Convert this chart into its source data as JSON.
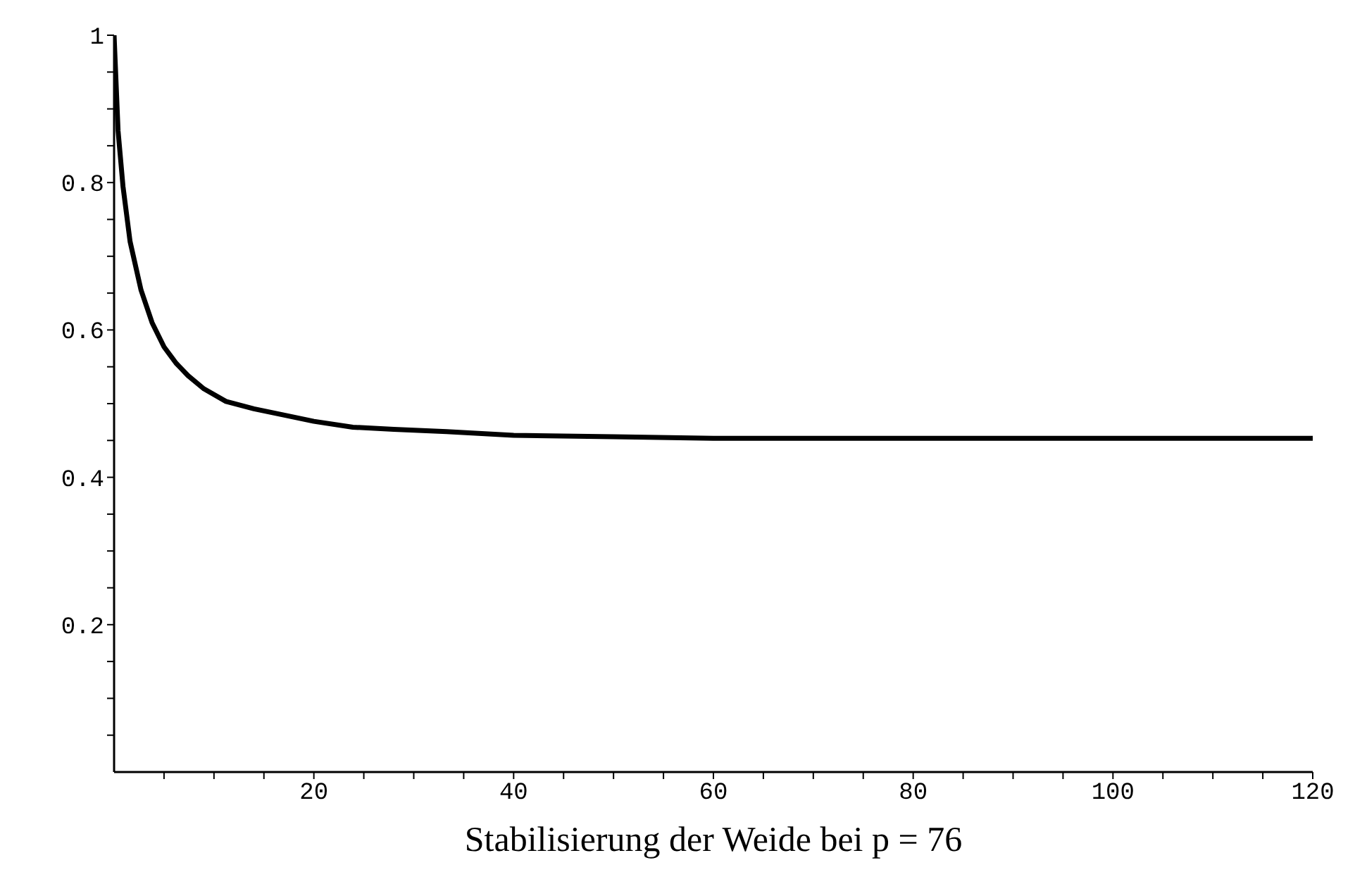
{
  "chart_data": {
    "type": "line",
    "xlabel": "Stabilisierung der Weide bei p = 76",
    "x": [
      0,
      0.1,
      0.4,
      0.89,
      1.6,
      2.7,
      3.8,
      5.0,
      6.2,
      7.4,
      9,
      11.2,
      14,
      16.8,
      20,
      23.9,
      28,
      33.3,
      40,
      50,
      60,
      80,
      100,
      120
    ],
    "series": [
      {
        "color": "#000000",
        "values": [
          1,
          0.967,
          0.87,
          0.795,
          0.72,
          0.654,
          0.61,
          0.577,
          0.555,
          0.538,
          0.52,
          0.503,
          0.493,
          0.485,
          0.476,
          0.468,
          0.465,
          0.462,
          0.457,
          0.455,
          0.453,
          0.453,
          0.453,
          0.453
        ]
      }
    ],
    "xlim": [
      0,
      120
    ],
    "xticks": [
      {
        "value": 5,
        "label": null
      },
      {
        "value": 10,
        "label": null
      },
      {
        "value": 15,
        "label": null
      },
      20,
      {
        "value": 25,
        "label": null
      },
      {
        "value": 30,
        "label": null
      },
      {
        "value": 35,
        "label": null
      },
      40,
      {
        "value": 45,
        "label": null
      },
      {
        "value": 50,
        "label": null
      },
      {
        "value": 55,
        "label": null
      },
      60,
      {
        "value": 65,
        "label": null
      },
      {
        "value": 70,
        "label": null
      },
      {
        "value": 75,
        "label": null
      },
      80,
      {
        "value": 85,
        "label": null
      },
      {
        "value": 90,
        "label": null
      },
      {
        "value": 95,
        "label": null
      },
      100,
      {
        "value": 105,
        "label": null
      },
      {
        "value": 110,
        "label": null
      },
      {
        "value": 115,
        "label": null
      },
      120
    ],
    "ylim": [
      0,
      1
    ],
    "yticks": [
      {
        "value": 0.05,
        "label": null
      },
      {
        "value": 0.1,
        "label": null
      },
      {
        "value": 0.15,
        "label": null
      },
      0.2,
      {
        "value": 0.25,
        "label": null
      },
      {
        "value": 0.3,
        "label": null
      },
      {
        "value": 0.35,
        "label": null
      },
      0.4,
      {
        "value": 0.45,
        "label": null
      },
      {
        "value": 0.5,
        "label": null
      },
      {
        "value": 0.55,
        "label": null
      },
      0.6,
      {
        "value": 0.65,
        "label": null
      },
      {
        "value": 0.7,
        "label": null
      },
      {
        "value": 0.75,
        "label": null
      },
      0.8,
      {
        "value": 0.85,
        "label": null
      },
      {
        "value": 0.9,
        "label": null
      },
      {
        "value": 0.95,
        "label": null
      },
      1
    ],
    "grid": false,
    "marker": "none",
    "line_style": "solid"
  }
}
